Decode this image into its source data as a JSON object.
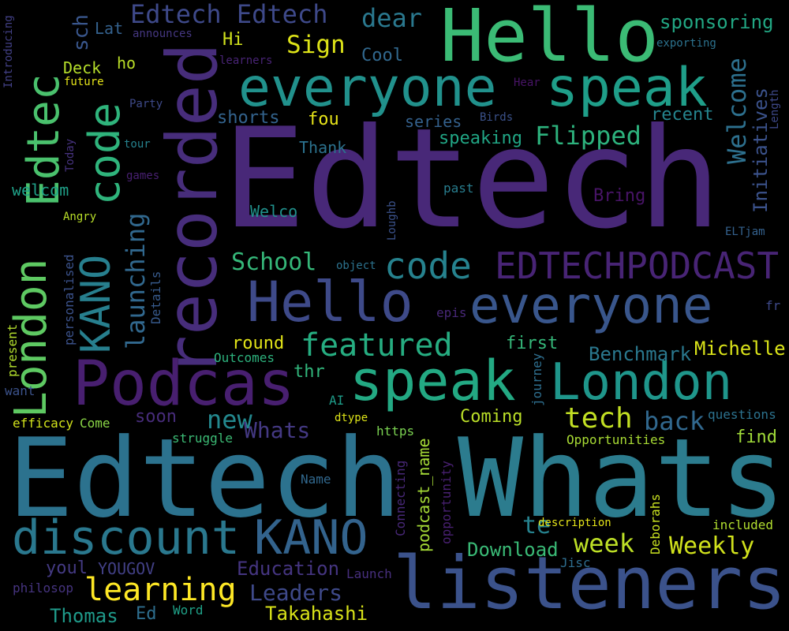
{
  "background_color": "#000000",
  "words": [
    {
      "text": "Edtech",
      "color": "#482878"
    },
    {
      "text": "Edtech",
      "color": "#2c728e"
    },
    {
      "text": "Whats",
      "color": "#2c7c8e"
    },
    {
      "text": "Hello",
      "color": "#3bbb75"
    },
    {
      "text": "listeners",
      "color": "#3b528b"
    },
    {
      "text": "Podcas",
      "color": "#481f70"
    },
    {
      "text": "recorded",
      "color": "#472d7b"
    },
    {
      "text": "everyone",
      "color": "#21918c"
    },
    {
      "text": "speak",
      "color": "#1f9e89"
    },
    {
      "text": "Hello",
      "color": "#3e4a89"
    },
    {
      "text": "everyone",
      "color": "#39568c"
    },
    {
      "text": "speak",
      "color": "#23a983"
    },
    {
      "text": "London",
      "color": "#1f968b"
    },
    {
      "text": "London",
      "color": "#5ec962"
    },
    {
      "text": "Edtec",
      "color": "#4ac16d"
    },
    {
      "text": "discount",
      "color": "#2a788e"
    },
    {
      "text": "KANO",
      "color": "#33638d"
    },
    {
      "text": "KANO",
      "color": "#277f8e"
    },
    {
      "text": "code",
      "color": "#2fb47c"
    },
    {
      "text": "code",
      "color": "#26828e"
    },
    {
      "text": "EDTECHPODCAST",
      "color": "#482475"
    },
    {
      "text": "featured",
      "color": "#26ad81"
    },
    {
      "text": "learning",
      "color": "#fde725"
    },
    {
      "text": "launching",
      "color": "#31688e"
    },
    {
      "text": "Edtech Edtech",
      "color": "#3e4989"
    },
    {
      "text": "dear",
      "color": "#2a788e"
    },
    {
      "text": "Sign",
      "color": "#dde318"
    },
    {
      "text": "Welcome",
      "color": "#2d708e"
    },
    {
      "text": "Initiatives",
      "color": "#3b528b"
    },
    {
      "text": "Flipped",
      "color": "#2db27d"
    },
    {
      "text": "tech",
      "color": "#c2df23"
    },
    {
      "text": "back",
      "color": "#31688e"
    },
    {
      "text": "week",
      "color": "#bddf26"
    },
    {
      "text": "Weekly",
      "color": "#d0e11c"
    },
    {
      "text": "new",
      "color": "#23888e"
    },
    {
      "text": "Whats",
      "color": "#443983"
    },
    {
      "text": "School",
      "color": "#35b779"
    },
    {
      "text": "Leaders",
      "color": "#3e4989"
    },
    {
      "text": "sponsoring",
      "color": "#22a884"
    },
    {
      "text": "Benchmark",
      "color": "#2a788e"
    },
    {
      "text": "Michelle",
      "color": "#dae319"
    },
    {
      "text": "Takahashi",
      "color": "#d8e219"
    },
    {
      "text": "Thomas",
      "color": "#1f9a8a"
    },
    {
      "text": "Education",
      "color": "#453581"
    },
    {
      "text": "Download",
      "color": "#3aba76"
    },
    {
      "text": "te",
      "color": "#26828e"
    },
    {
      "text": "podcast_name",
      "color": "#a5db36"
    },
    {
      "text": "YOUGOV",
      "color": "#424086"
    },
    {
      "text": "youl",
      "color": "#443a83"
    },
    {
      "text": "Ed",
      "color": "#2e6e8e"
    },
    {
      "text": "Word",
      "color": "#1fa188"
    },
    {
      "text": "Launch",
      "color": "#472f7d"
    },
    {
      "text": "Jisc",
      "color": "#2e6d8e"
    },
    {
      "text": "included",
      "color": "#b0dd2f"
    },
    {
      "text": "Deborahs",
      "color": "#c8e020"
    },
    {
      "text": "description",
      "color": "#e5e419"
    },
    {
      "text": "opportunity",
      "color": "#482071"
    },
    {
      "text": "Connecting",
      "color": "#482878"
    },
    {
      "text": "Name",
      "color": "#31688e"
    },
    {
      "text": "https",
      "color": "#7ad151"
    },
    {
      "text": "dtype",
      "color": "#dde318"
    },
    {
      "text": "AI",
      "color": "#1e9c89"
    },
    {
      "text": "Opportunities",
      "color": "#a8db34"
    },
    {
      "text": "questions",
      "color": "#2c728e"
    },
    {
      "text": "find",
      "color": "#a0da39"
    },
    {
      "text": "Coming",
      "color": "#bade28"
    },
    {
      "text": "soon",
      "color": "#472c7a"
    },
    {
      "text": "struggle",
      "color": "#3cbb75"
    },
    {
      "text": "Come",
      "color": "#8bd646"
    },
    {
      "text": "efficacy",
      "color": "#d2e21b"
    },
    {
      "text": "want",
      "color": "#3b528b"
    },
    {
      "text": "present",
      "color": "#b2dd2d"
    },
    {
      "text": "philosop",
      "color": "#463480"
    },
    {
      "text": "personalised",
      "color": "#3b528b"
    },
    {
      "text": "Details",
      "color": "#375a8c"
    },
    {
      "text": "Outcomes",
      "color": "#2db27d"
    },
    {
      "text": "thr",
      "color": "#31b57b"
    },
    {
      "text": "round",
      "color": "#e2e418"
    },
    {
      "text": "first",
      "color": "#35b779"
    },
    {
      "text": "journey",
      "color": "#2e6e8e"
    },
    {
      "text": "epis",
      "color": "#482878"
    },
    {
      "text": "object",
      "color": "#2c728e"
    },
    {
      "text": "Loughb",
      "color": "#3b528b"
    },
    {
      "text": "ELTjam",
      "color": "#34618d"
    },
    {
      "text": "fr",
      "color": "#3e4989"
    },
    {
      "text": "past",
      "color": "#287d8e"
    },
    {
      "text": "Bring",
      "color": "#481467"
    },
    {
      "text": "Welco",
      "color": "#21918c"
    },
    {
      "text": "Thank",
      "color": "#2c728e"
    },
    {
      "text": "speaking",
      "color": "#21a685"
    },
    {
      "text": "series",
      "color": "#34618d"
    },
    {
      "text": "Birds",
      "color": "#3b528b"
    },
    {
      "text": "fou",
      "color": "#e7e419"
    },
    {
      "text": "shorts",
      "color": "#33638d"
    },
    {
      "text": "recent",
      "color": "#25858e"
    },
    {
      "text": "Length",
      "color": "#3e4989"
    },
    {
      "text": "Hear",
      "color": "#481467"
    },
    {
      "text": "exporting",
      "color": "#2c728e"
    },
    {
      "text": "Cool",
      "color": "#31688e"
    },
    {
      "text": "Hi",
      "color": "#d0e11c"
    },
    {
      "text": "sch",
      "color": "#39568c"
    },
    {
      "text": "Lat",
      "color": "#34618d"
    },
    {
      "text": "announces",
      "color": "#453781"
    },
    {
      "text": "learners",
      "color": "#482475"
    },
    {
      "text": "ho",
      "color": "#bade28"
    },
    {
      "text": "Deck",
      "color": "#b5de2b"
    },
    {
      "text": "future",
      "color": "#e5e419"
    },
    {
      "text": "Party",
      "color": "#3e4a89"
    },
    {
      "text": "tour",
      "color": "#26828e"
    },
    {
      "text": "games",
      "color": "#482071"
    },
    {
      "text": "Today",
      "color": "#46327e"
    },
    {
      "text": "Introducing",
      "color": "#424086"
    },
    {
      "text": "welcom",
      "color": "#1fa188"
    },
    {
      "text": "Angry",
      "color": "#b8de29"
    }
  ]
}
